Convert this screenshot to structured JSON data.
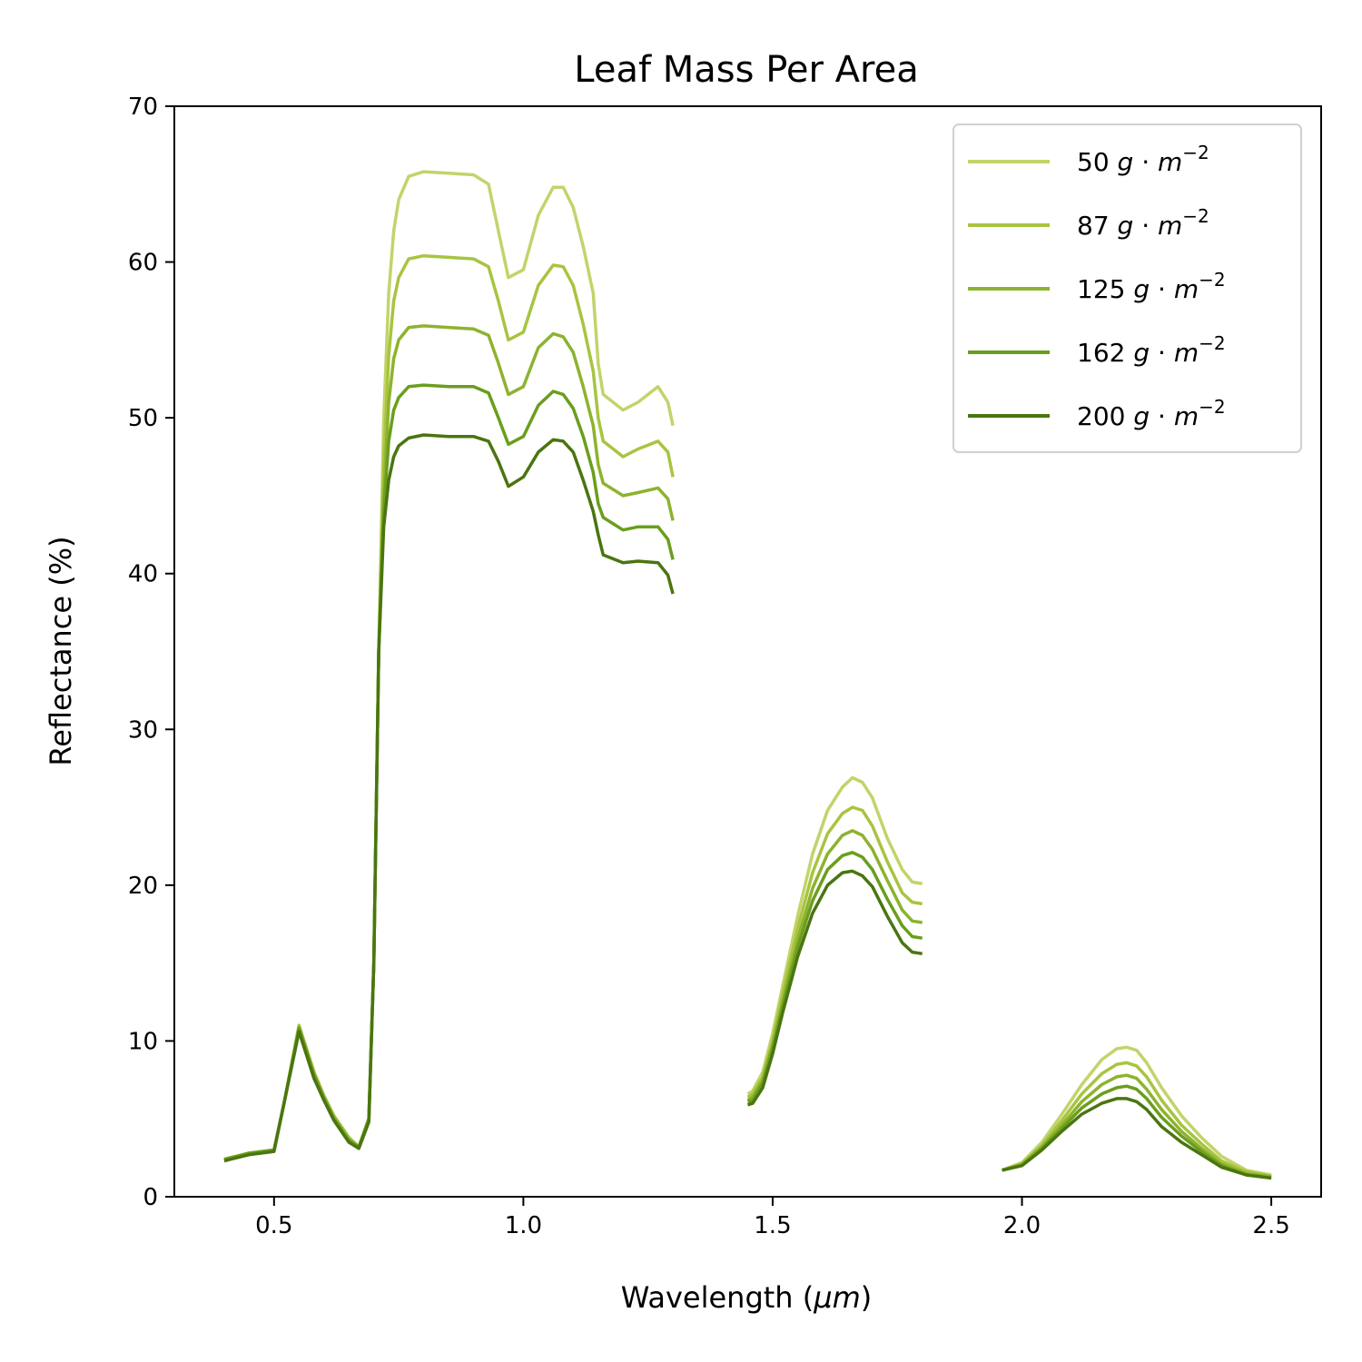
{
  "chart_data": {
    "type": "line",
    "title": "Leaf Mass Per Area",
    "xlabel": "Wavelength (",
    "xlabel_unit": "μm",
    "xlabel_close": ")",
    "ylabel": "Reflectance (%)",
    "xlim": [
      0.3,
      2.6
    ],
    "ylim": [
      0,
      70
    ],
    "xticks": [
      "0.5",
      "1.0",
      "1.5",
      "2.0",
      "2.5"
    ],
    "yticks": [
      "0",
      "10",
      "20",
      "30",
      "40",
      "50",
      "60",
      "70"
    ],
    "grid": false,
    "legend_position": "top-right",
    "unit_label": {
      "g": "g",
      "dot": " · ",
      "m": "m",
      "exp": "−2"
    },
    "series": [
      {
        "name": "50",
        "color": "#c2d46a"
      },
      {
        "name": "87",
        "color": "#a8c440"
      },
      {
        "name": "125",
        "color": "#8db32e"
      },
      {
        "name": "162",
        "color": "#6a9e1c"
      },
      {
        "name": "200",
        "color": "#4a7510"
      }
    ],
    "segments": [
      {
        "x": [
          0.4,
          0.45,
          0.5,
          0.52,
          0.55,
          0.58,
          0.6,
          0.62,
          0.65,
          0.67,
          0.69,
          0.7,
          0.71,
          0.72,
          0.73,
          0.74,
          0.75,
          0.77,
          0.8,
          0.85,
          0.9,
          0.93,
          0.95,
          0.97,
          1.0,
          1.03,
          1.06,
          1.08,
          1.1,
          1.12,
          1.14,
          1.15,
          1.16,
          1.2,
          1.23,
          1.27,
          1.29,
          1.3
        ],
        "values": [
          [
            2.4,
            2.8,
            3.0,
            6.0,
            11.0,
            8.0,
            6.5,
            5.2,
            3.8,
            3.2,
            5.0,
            15.0,
            35.0,
            50.0,
            58.0,
            62.0,
            64.0,
            65.5,
            65.8,
            65.7,
            65.6,
            65.0,
            62.0,
            59.0,
            59.5,
            63.0,
            64.8,
            64.8,
            63.5,
            61.0,
            58.0,
            53.5,
            51.5,
            50.5,
            51.0,
            52.0,
            51.0,
            49.5
          ],
          [
            2.4,
            2.8,
            3.0,
            6.0,
            11.0,
            8.0,
            6.5,
            5.2,
            3.8,
            3.2,
            5.0,
            15.0,
            35.0,
            47.0,
            54.0,
            57.5,
            59.0,
            60.2,
            60.4,
            60.3,
            60.2,
            59.7,
            57.5,
            55.0,
            55.5,
            58.5,
            59.8,
            59.7,
            58.5,
            56.0,
            53.0,
            50.0,
            48.5,
            47.5,
            48.0,
            48.5,
            47.8,
            46.2
          ],
          [
            2.4,
            2.8,
            3.0,
            6.0,
            10.9,
            7.9,
            6.4,
            5.1,
            3.7,
            3.2,
            5.0,
            15.0,
            35.0,
            45.0,
            51.0,
            53.8,
            55.0,
            55.8,
            55.9,
            55.8,
            55.7,
            55.3,
            53.5,
            51.5,
            52.0,
            54.5,
            55.4,
            55.2,
            54.2,
            52.0,
            49.5,
            47.0,
            45.8,
            45.0,
            45.2,
            45.5,
            44.8,
            43.4
          ],
          [
            2.4,
            2.8,
            3.0,
            6.0,
            10.8,
            7.8,
            6.3,
            5.0,
            3.6,
            3.2,
            5.0,
            15.0,
            35.0,
            44.0,
            48.5,
            50.5,
            51.3,
            52.0,
            52.1,
            52.0,
            52.0,
            51.6,
            50.0,
            48.3,
            48.8,
            50.8,
            51.7,
            51.5,
            50.6,
            48.8,
            46.5,
            44.5,
            43.6,
            42.8,
            43.0,
            43.0,
            42.2,
            40.9
          ],
          [
            2.3,
            2.7,
            2.9,
            6.0,
            10.6,
            7.6,
            6.2,
            4.9,
            3.5,
            3.1,
            4.8,
            15.0,
            35.0,
            43.0,
            46.0,
            47.5,
            48.2,
            48.7,
            48.9,
            48.8,
            48.8,
            48.5,
            47.2,
            45.6,
            46.2,
            47.8,
            48.6,
            48.5,
            47.8,
            46.0,
            44.0,
            42.5,
            41.2,
            40.7,
            40.8,
            40.7,
            39.9,
            38.7
          ]
        ]
      },
      {
        "x": [
          1.45,
          1.46,
          1.48,
          1.5,
          1.52,
          1.55,
          1.58,
          1.61,
          1.64,
          1.66,
          1.68,
          1.7,
          1.73,
          1.76,
          1.78,
          1.8
        ],
        "values": [
          [
            6.6,
            6.8,
            8.0,
            10.5,
            13.5,
            18.0,
            22.0,
            24.8,
            26.3,
            26.9,
            26.6,
            25.6,
            23.0,
            21.0,
            20.2,
            20.1
          ],
          [
            6.4,
            6.6,
            7.7,
            10.0,
            13.0,
            17.2,
            20.8,
            23.3,
            24.6,
            25.0,
            24.8,
            23.8,
            21.5,
            19.5,
            18.9,
            18.8
          ],
          [
            6.2,
            6.4,
            7.5,
            9.8,
            12.5,
            16.5,
            19.8,
            22.0,
            23.2,
            23.5,
            23.2,
            22.3,
            20.3,
            18.4,
            17.7,
            17.6
          ],
          [
            6.1,
            6.2,
            7.3,
            9.5,
            12.2,
            16.0,
            19.0,
            21.0,
            21.9,
            22.1,
            21.8,
            21.0,
            19.1,
            17.4,
            16.7,
            16.6
          ],
          [
            5.9,
            6.0,
            7.0,
            9.2,
            11.8,
            15.4,
            18.2,
            20.0,
            20.8,
            20.9,
            20.6,
            19.9,
            18.0,
            16.3,
            15.7,
            15.6
          ]
        ]
      },
      {
        "x": [
          1.96,
          2.0,
          2.04,
          2.08,
          2.12,
          2.16,
          2.19,
          2.21,
          2.23,
          2.25,
          2.28,
          2.32,
          2.36,
          2.4,
          2.45,
          2.5
        ],
        "values": [
          [
            1.7,
            2.2,
            3.5,
            5.3,
            7.2,
            8.8,
            9.5,
            9.6,
            9.4,
            8.6,
            7.0,
            5.2,
            3.8,
            2.6,
            1.7,
            1.4
          ],
          [
            1.7,
            2.1,
            3.3,
            4.9,
            6.6,
            7.9,
            8.5,
            8.6,
            8.4,
            7.7,
            6.2,
            4.6,
            3.4,
            2.3,
            1.6,
            1.3
          ],
          [
            1.7,
            2.1,
            3.2,
            4.6,
            6.1,
            7.2,
            7.7,
            7.8,
            7.6,
            6.9,
            5.6,
            4.2,
            3.1,
            2.1,
            1.5,
            1.3
          ],
          [
            1.7,
            2.0,
            3.1,
            4.4,
            5.7,
            6.6,
            7.0,
            7.1,
            6.9,
            6.3,
            5.1,
            3.9,
            2.9,
            2.0,
            1.4,
            1.2
          ],
          [
            1.7,
            2.0,
            3.0,
            4.2,
            5.3,
            6.0,
            6.3,
            6.3,
            6.1,
            5.6,
            4.5,
            3.5,
            2.7,
            1.9,
            1.4,
            1.2
          ]
        ]
      }
    ]
  }
}
